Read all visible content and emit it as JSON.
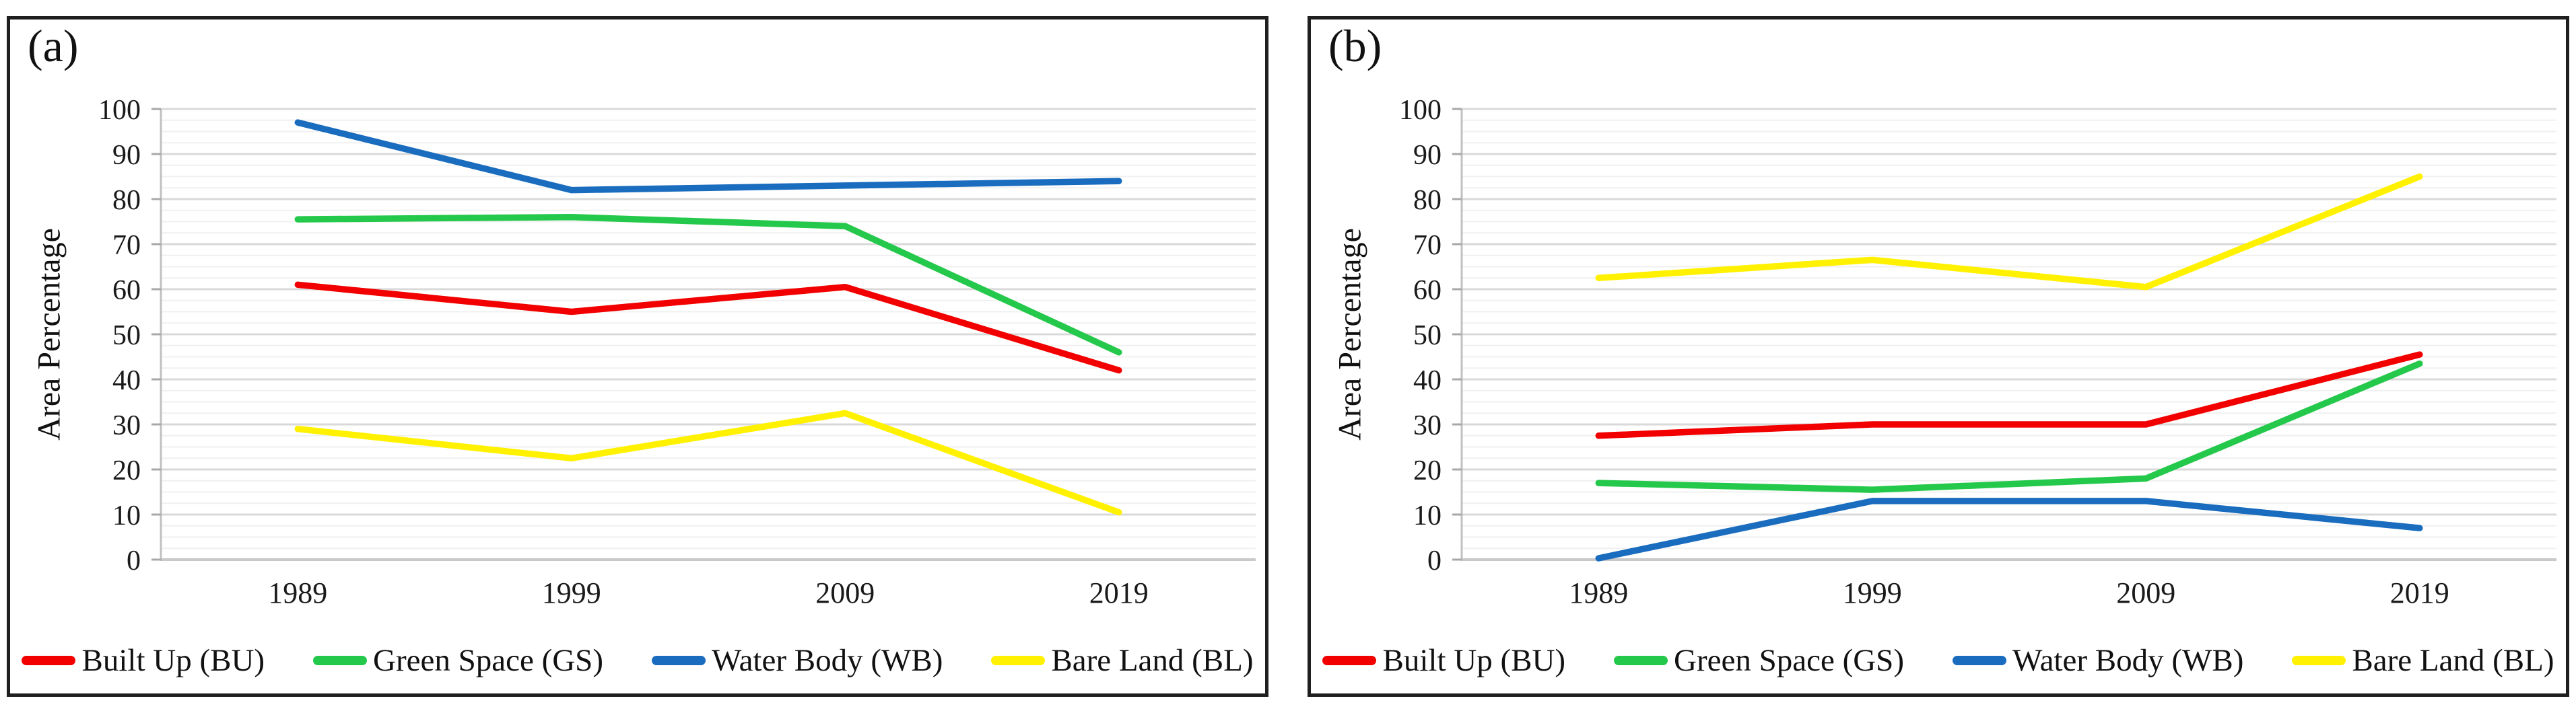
{
  "figure": {
    "panels": [
      {
        "label": "(a)",
        "y_axis_title": "Area Percentage"
      },
      {
        "label": "(b)",
        "y_axis_title": "Area Percentage"
      }
    ]
  },
  "colors": {
    "built_up": "#F20000",
    "green_space": "#24C84B",
    "water_body": "#1A6CBE",
    "bare_land": "#FFF100",
    "major_gridline": "#D9D9D9",
    "minor_gridline": "#F0F0F0",
    "axis_line": "#C0C0C0",
    "tick_mark": "#A8A8A8",
    "text": "#1a1a1a",
    "panel_border": "#1f1f1f"
  },
  "chart_data": [
    {
      "type": "line",
      "panel": "(a)",
      "title": "",
      "xlabel": "",
      "ylabel": "Area Percentage",
      "categories": [
        "1989",
        "1999",
        "2009",
        "2019"
      ],
      "series": [
        {
          "name": "Built Up (BU)",
          "color_key": "built_up",
          "values": [
            61,
            55,
            60.5,
            42
          ]
        },
        {
          "name": "Green Space (GS)",
          "color_key": "green_space",
          "values": [
            75.5,
            76,
            74,
            46
          ]
        },
        {
          "name": "Water Body (WB)",
          "color_key": "water_body",
          "values": [
            97,
            82,
            83,
            84
          ]
        },
        {
          "name": "Bare Land (BL)",
          "color_key": "bare_land",
          "values": [
            29,
            22.5,
            32.5,
            10.5
          ]
        }
      ],
      "ylim": [
        0,
        100
      ],
      "ytick_step": 10,
      "yticks": [
        0,
        10,
        20,
        30,
        40,
        50,
        60,
        70,
        80,
        90,
        100
      ],
      "minor_gridline_step": 2.5,
      "grid": true,
      "legend_position": "bottom"
    },
    {
      "type": "line",
      "panel": "(b)",
      "title": "",
      "xlabel": "",
      "ylabel": "Area Percentage",
      "categories": [
        "1989",
        "1999",
        "2009",
        "2019"
      ],
      "series": [
        {
          "name": "Built Up (BU)",
          "color_key": "built_up",
          "values": [
            27.5,
            30,
            30,
            45.5
          ]
        },
        {
          "name": "Green Space (GS)",
          "color_key": "green_space",
          "values": [
            17,
            15.5,
            18,
            43.5
          ]
        },
        {
          "name": "Water Body (WB)",
          "color_key": "water_body",
          "values": [
            0.3,
            13,
            13,
            7
          ]
        },
        {
          "name": "Bare Land (BL)",
          "color_key": "bare_land",
          "values": [
            62.5,
            66.5,
            60.5,
            85
          ]
        }
      ],
      "ylim": [
        0,
        100
      ],
      "ytick_step": 10,
      "yticks": [
        0,
        10,
        20,
        30,
        40,
        50,
        60,
        70,
        80,
        90,
        100
      ],
      "minor_gridline_step": 2.5,
      "grid": true,
      "legend_position": "bottom"
    }
  ]
}
